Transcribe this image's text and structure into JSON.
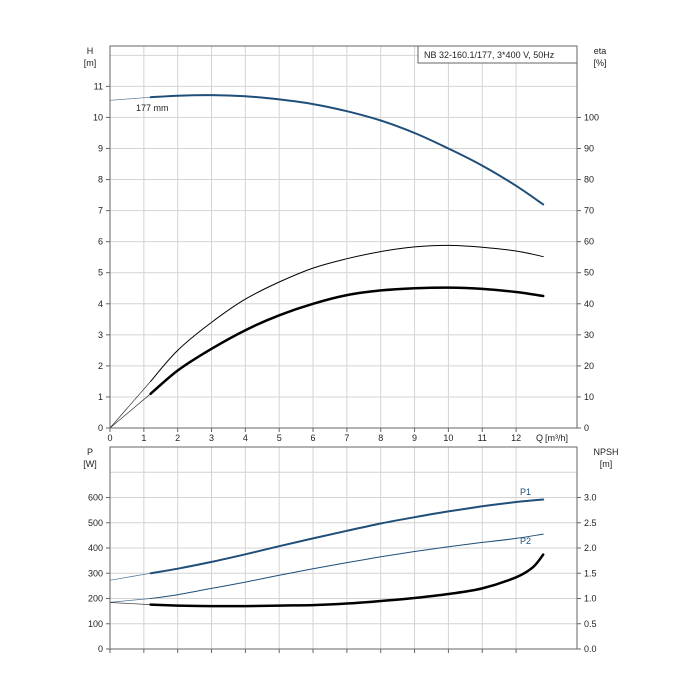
{
  "chart_data": [
    {
      "type": "line",
      "name": "pump-curve-panel",
      "legend_text": "NB 32-160.1/177, 3*400 V, 50Hz",
      "legend_position": "top-right",
      "grid": true,
      "x_axis": {
        "label": "Q [m³/h]",
        "label_q": "Q",
        "label_unit": "[m³/h]",
        "range": [
          0,
          13.8
        ],
        "ticks": [
          0,
          1,
          2,
          3,
          4,
          5,
          6,
          7,
          8,
          9,
          10,
          11,
          12
        ]
      },
      "y_left": {
        "label": "H",
        "unit": "[m]",
        "range": [
          0,
          12.3
        ],
        "ticks": [
          0,
          1,
          2,
          3,
          4,
          5,
          6,
          7,
          8,
          9,
          10,
          11
        ]
      },
      "y_right": {
        "label": "eta",
        "unit": "[%]",
        "range": [
          0,
          123
        ],
        "ticks": [
          0,
          10,
          20,
          30,
          40,
          50,
          60,
          70,
          80,
          90,
          100
        ]
      },
      "annotations": [
        {
          "text": "177 mm",
          "x": 1.7,
          "y": 10.7
        }
      ],
      "series": [
        {
          "id": "head",
          "axis": "left",
          "color": "#1f4e79",
          "width": 2,
          "extrapolated_from_zero": true,
          "x": [
            0,
            1.2,
            2,
            3,
            4,
            5,
            6,
            7,
            8,
            9,
            10,
            11,
            12,
            12.8
          ],
          "y": [
            10.55,
            10.65,
            10.7,
            10.72,
            10.68,
            10.58,
            10.43,
            10.2,
            9.9,
            9.5,
            9.0,
            8.45,
            7.8,
            7.2
          ]
        },
        {
          "id": "eta-unit",
          "axis": "right",
          "color": "#000000",
          "width": 1,
          "extrapolated_from_zero": true,
          "x": [
            0,
            1.2,
            2,
            3,
            4,
            5,
            6,
            7,
            8,
            9,
            10,
            11,
            12,
            12.8
          ],
          "y": [
            0,
            15,
            25,
            34,
            41.5,
            47,
            51.5,
            54.5,
            56.8,
            58.3,
            58.8,
            58.2,
            57,
            55.2
          ]
        },
        {
          "id": "eta-total",
          "axis": "right",
          "color": "#000000",
          "width": 2.5,
          "extrapolated_from_zero": true,
          "x": [
            0,
            1.2,
            2,
            3,
            4,
            5,
            6,
            7,
            8,
            9,
            10,
            11,
            12,
            12.8
          ],
          "y": [
            0,
            11,
            18.5,
            25.5,
            31.5,
            36.3,
            40,
            42.8,
            44.3,
            45,
            45.2,
            44.8,
            43.8,
            42.5
          ]
        }
      ]
    },
    {
      "type": "line",
      "name": "power-npsh-panel",
      "grid": true,
      "x_axis": {
        "range": [
          0,
          13.8
        ],
        "ticks": [
          0,
          1,
          2,
          3,
          4,
          5,
          6,
          7,
          8,
          9,
          10,
          11,
          12
        ]
      },
      "y_left": {
        "label": "P",
        "unit": "[W]",
        "range": [
          0,
          800
        ],
        "ticks": [
          0,
          100,
          200,
          300,
          400,
          500,
          600
        ]
      },
      "y_right": {
        "label": "NPSH",
        "unit": "[m]",
        "range": [
          0,
          4.0
        ],
        "ticks": [
          "0.0",
          "0.5",
          "1.0",
          "1.5",
          "2.0",
          "2.5",
          "3.0"
        ]
      },
      "series": [
        {
          "id": "P1",
          "name": "P1",
          "axis": "left",
          "color": "#1f4e79",
          "width": 2,
          "extrapolated_from_zero": true,
          "x": [
            0,
            1.2,
            2,
            3,
            4,
            5,
            6,
            7,
            8,
            9,
            10,
            11,
            12,
            12.8
          ],
          "y": [
            272,
            300,
            318,
            345,
            375,
            407,
            438,
            468,
            497,
            522,
            545,
            565,
            582,
            592
          ]
        },
        {
          "id": "P2",
          "name": "P2",
          "axis": "left",
          "color": "#1f4e79",
          "width": 1,
          "extrapolated_from_zero": true,
          "x": [
            0,
            1.2,
            2,
            3,
            4,
            5,
            6,
            7,
            8,
            9,
            10,
            11,
            12,
            12.8
          ],
          "y": [
            185,
            200,
            215,
            240,
            265,
            292,
            318,
            342,
            365,
            386,
            405,
            422,
            438,
            455
          ]
        },
        {
          "id": "NPSH",
          "axis": "right",
          "color": "#000000",
          "width": 2.5,
          "extrapolated_from_zero": true,
          "x": [
            0,
            1.2,
            2,
            3,
            4,
            5,
            6,
            7,
            8,
            9,
            10,
            11,
            12,
            12.5,
            12.8
          ],
          "y": [
            0.92,
            0.88,
            0.86,
            0.85,
            0.85,
            0.86,
            0.87,
            0.9,
            0.95,
            1.01,
            1.09,
            1.2,
            1.42,
            1.62,
            1.87
          ]
        }
      ]
    }
  ]
}
